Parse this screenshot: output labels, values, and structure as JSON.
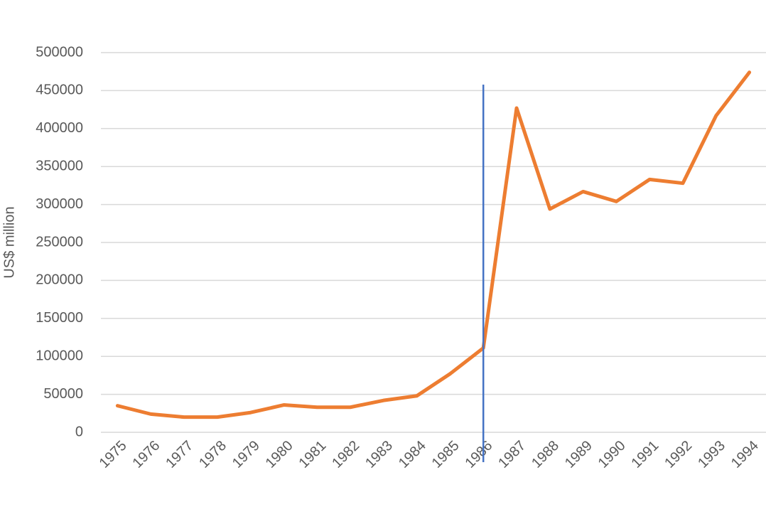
{
  "chart_data": {
    "type": "line",
    "y_label": "US$ million",
    "categories": [
      "1975",
      "1976",
      "1977",
      "1978",
      "1979",
      "1980",
      "1981",
      "1982",
      "1983",
      "1984",
      "1985",
      "1986",
      "1987",
      "1988",
      "1989",
      "1990",
      "1991",
      "1992",
      "1993",
      "1994"
    ],
    "values": [
      35000,
      24000,
      20000,
      20000,
      26000,
      36000,
      33000,
      33000,
      42000,
      48000,
      77000,
      111000,
      427000,
      294000,
      317000,
      304000,
      333000,
      328000,
      417000,
      474000
    ],
    "color": "#ed7d31",
    "ylim": [
      0,
      500000
    ],
    "yticks": [
      0,
      50000,
      100000,
      150000,
      200000,
      250000,
      300000,
      350000,
      400000,
      450000,
      500000
    ],
    "grid": true,
    "reference_line": {
      "category_index": 11,
      "color": "#4472c4"
    }
  }
}
